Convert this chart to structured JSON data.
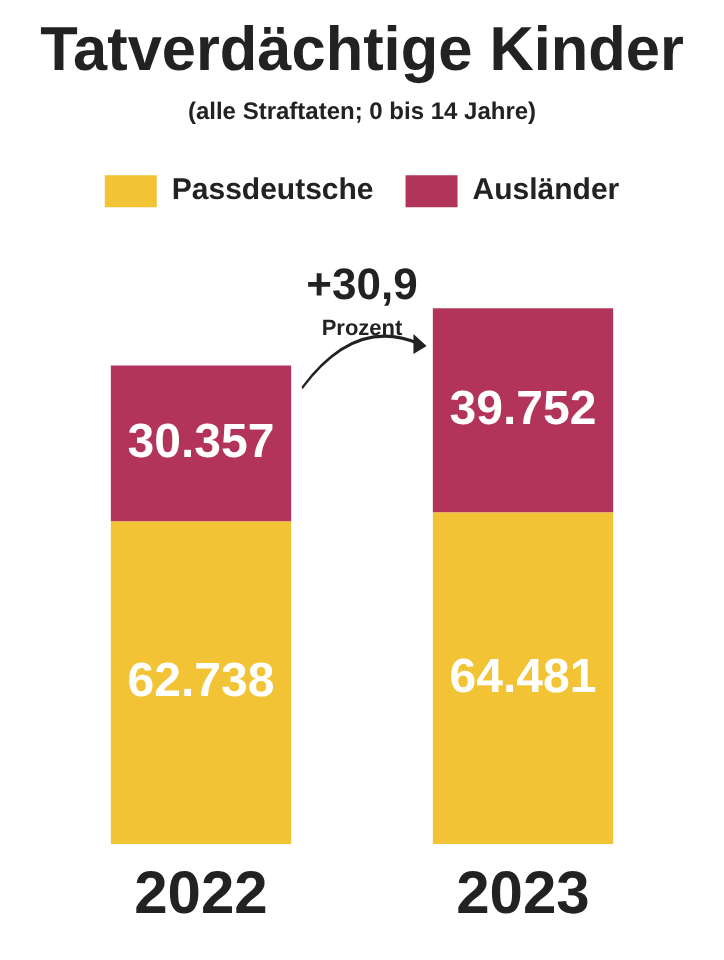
{
  "chart_data": {
    "type": "bar",
    "title": "Tatverdächtige Kinder",
    "subtitle": "(alle Straftaten; 0 bis 14 Jahre)",
    "categories": [
      "2022",
      "2023"
    ],
    "series": [
      {
        "name": "Passdeutsche",
        "color": "#f2c335",
        "values": [
          62738,
          64481
        ],
        "value_labels": [
          "62.738",
          "64.481"
        ]
      },
      {
        "name": "Ausländer",
        "color": "#b3345b",
        "values": [
          30357,
          39752
        ],
        "value_labels": [
          "30.357",
          "39.752"
        ]
      }
    ],
    "stacked": true,
    "legend": "top",
    "tick_labels": "x",
    "annotations": [
      "+30,9",
      "Prozent"
    ]
  }
}
